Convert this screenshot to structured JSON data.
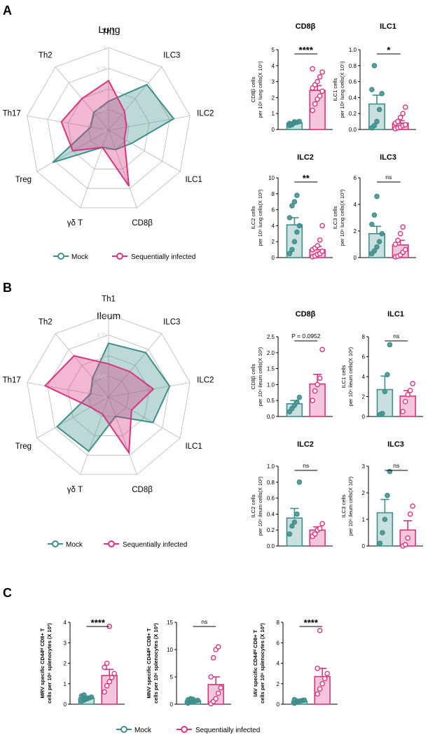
{
  "colors": {
    "mock": "#3e8e8b",
    "infected": "#d9347f",
    "mock_fill": "#3e8e8b",
    "infected_fill": "#d9347f",
    "sig_line": "#000000",
    "radar_grid": "#b8b8b8"
  },
  "radar_ticks": [
    "0",
    "0.25",
    "0.5",
    "0.75",
    "1"
  ],
  "legend": {
    "mock": "Mock",
    "infected": "Sequentially infected"
  },
  "panels": [
    {
      "label": "A",
      "title": "Lung"
    },
    {
      "label": "B",
      "title": "Ileum"
    },
    {
      "label": "C",
      "title": ""
    }
  ],
  "chart_data": [
    {
      "id": "radarA",
      "type": "radar",
      "panel": "A",
      "title": "Lung",
      "axes": [
        "Th1",
        "ILC3",
        "ILC2",
        "ILC1",
        "CD8β",
        "γδ T",
        "Treg",
        "Th17",
        "Th2"
      ],
      "series": [
        {
          "name": "Mock",
          "values": [
            0.35,
            0.72,
            0.8,
            0.32,
            0.25,
            0.22,
            0.78,
            0.22,
            0.28
          ]
        },
        {
          "name": "Sequentially infected",
          "values": [
            0.6,
            0.3,
            0.22,
            0.22,
            0.72,
            0.22,
            0.5,
            0.58,
            0.5
          ]
        }
      ],
      "rmax": 1
    },
    {
      "id": "barA_cd8",
      "type": "bar",
      "panel": "A",
      "title": "CD8β",
      "ylabel": [
        "CD8β cells",
        "per 10⁶ lung cells(X 10⁵)"
      ],
      "ylim": [
        0,
        5
      ],
      "yticks": [
        "0",
        "1",
        "2",
        "3",
        "4",
        "5"
      ],
      "categories": [
        "Mock",
        "Sequentially infected"
      ],
      "values": [
        0.4,
        2.45
      ],
      "errors": [
        0.06,
        0.3
      ],
      "points": [
        [
          0.25,
          0.35,
          0.42,
          0.45,
          0.5,
          0.38,
          0.3,
          0.48
        ],
        [
          1.2,
          1.6,
          1.9,
          2.1,
          2.4,
          2.6,
          2.8,
          3.0,
          3.3,
          3.6,
          3.8
        ]
      ],
      "significance": "****"
    },
    {
      "id": "barA_ilc1",
      "type": "bar",
      "panel": "A",
      "title": "ILC1",
      "ylabel": [
        "ILC1 cells",
        "per 10⁶ lung cells(X 10⁵)"
      ],
      "ylim": [
        0,
        1.0
      ],
      "yticks": [
        "0.0",
        "0.2",
        "0.4",
        "0.6",
        "0.8",
        "1.0"
      ],
      "categories": [
        "Mock",
        "Sequentially infected"
      ],
      "values": [
        0.32,
        0.08
      ],
      "errors": [
        0.11,
        0.03
      ],
      "points": [
        [
          0.02,
          0.05,
          0.1,
          0.25,
          0.45,
          0.5,
          0.8
        ],
        [
          0.01,
          0.02,
          0.03,
          0.05,
          0.06,
          0.08,
          0.1,
          0.15,
          0.2,
          0.28
        ]
      ],
      "significance": "*"
    },
    {
      "id": "barA_ilc2",
      "type": "bar",
      "panel": "A",
      "title": "ILC2",
      "ylabel": [
        "ILC2 cells",
        "per 10⁶ lung cells(X 10²)"
      ],
      "ylim": [
        0,
        10
      ],
      "yticks": [
        "0",
        "2",
        "4",
        "6",
        "8",
        "10"
      ],
      "categories": [
        "Mock",
        "Sequentially infected"
      ],
      "values": [
        4.1,
        1.0
      ],
      "errors": [
        0.9,
        0.4
      ],
      "points": [
        [
          0.5,
          1.0,
          2.0,
          3.2,
          4.0,
          5.0,
          6.5,
          7.0,
          7.8
        ],
        [
          0.1,
          0.2,
          0.4,
          0.5,
          0.8,
          1.0,
          1.2,
          1.5,
          2.2,
          4.0
        ]
      ],
      "significance": "**"
    },
    {
      "id": "barA_ilc3",
      "type": "bar",
      "panel": "A",
      "title": "ILC3",
      "ylabel": [
        "ILC3 cells",
        "per 10⁶ lung cells(X 10³)"
      ],
      "ylim": [
        0,
        6
      ],
      "yticks": [
        "0",
        "2",
        "4",
        "6"
      ],
      "categories": [
        "Mock",
        "Sequentially infected"
      ],
      "values": [
        1.8,
        0.95
      ],
      "errors": [
        0.55,
        0.35
      ],
      "points": [
        [
          0.3,
          0.5,
          0.8,
          1.2,
          1.8,
          2.5,
          3.2,
          4.6
        ],
        [
          0.05,
          0.1,
          0.2,
          0.4,
          0.6,
          1.0,
          1.3,
          1.8,
          2.3
        ]
      ],
      "significance": "ns"
    },
    {
      "id": "radarB",
      "type": "radar",
      "panel": "B",
      "title": "Ileum",
      "axes": [
        "Th1",
        "ILC3",
        "ILC2",
        "ILC1",
        "CD8β",
        "γδ T",
        "Treg",
        "Th17",
        "Th2"
      ],
      "series": [
        {
          "name": "Mock",
          "values": [
            0.65,
            0.7,
            0.75,
            0.62,
            0.25,
            0.7,
            0.72,
            0.22,
            0.3
          ]
        },
        {
          "name": "Sequentially infected",
          "values": [
            0.4,
            0.4,
            0.55,
            0.32,
            0.72,
            0.22,
            0.25,
            0.78,
            0.65
          ]
        }
      ],
      "rmax": 1
    },
    {
      "id": "barB_cd8",
      "type": "bar",
      "panel": "B",
      "title": "CD8β",
      "ylabel": [
        "CD8β cells",
        "per 10⁶ ileum cells(X 10²)"
      ],
      "ylim": [
        0,
        2.5
      ],
      "yticks": [
        "0.0",
        "0.5",
        "1.0",
        "1.5",
        "2.0",
        "2.5"
      ],
      "categories": [
        "Mock",
        "Sequentially infected"
      ],
      "values": [
        0.4,
        1.02
      ],
      "errors": [
        0.1,
        0.3
      ],
      "points": [
        [
          0.15,
          0.25,
          0.35,
          0.45,
          0.6
        ],
        [
          0.5,
          0.8,
          1.0,
          1.2,
          2.1
        ]
      ],
      "significance": "P = 0.0952"
    },
    {
      "id": "barB_ilc1",
      "type": "bar",
      "panel": "B",
      "title": "ILC1",
      "ylabel": [
        "ILC1 cells",
        "per 10⁶ ileum cells(X 10²)"
      ],
      "ylim": [
        0,
        8
      ],
      "yticks": [
        "0",
        "2",
        "4",
        "6",
        "8"
      ],
      "categories": [
        "Mock",
        "Sequentially infected"
      ],
      "values": [
        2.7,
        2.05
      ],
      "errors": [
        1.35,
        0.55
      ],
      "points": [
        [
          0.2,
          0.3,
          2.5,
          4.2,
          7.2
        ],
        [
          0.5,
          1.5,
          2.2,
          2.6,
          3.3
        ]
      ],
      "significance": "ns"
    },
    {
      "id": "barB_ilc2",
      "type": "bar",
      "panel": "B",
      "title": "ILC2",
      "ylabel": [
        "ILC2 cells",
        "per 10⁶ ileum cells(X 10²)"
      ],
      "ylim": [
        0,
        1.0
      ],
      "yticks": [
        "0.0",
        "0.2",
        "0.4",
        "0.6",
        "0.8",
        "1.0"
      ],
      "categories": [
        "Mock",
        "Sequentially infected"
      ],
      "values": [
        0.35,
        0.2
      ],
      "errors": [
        0.12,
        0.04
      ],
      "points": [
        [
          0.15,
          0.25,
          0.3,
          0.4,
          0.8
        ],
        [
          0.12,
          0.15,
          0.2,
          0.22,
          0.28
        ]
      ],
      "significance": "ns"
    },
    {
      "id": "barB_ilc3",
      "type": "bar",
      "panel": "B",
      "title": "ILC3",
      "ylabel": [
        "ILC3 cells",
        "per 10⁶ ileum cells(X 10²)"
      ],
      "ylim": [
        0,
        3
      ],
      "yticks": [
        "0",
        "1",
        "2",
        "3"
      ],
      "categories": [
        "Mock",
        "Sequentially infected"
      ],
      "values": [
        1.25,
        0.6
      ],
      "errors": [
        0.5,
        0.35
      ],
      "points": [
        [
          0.1,
          0.5,
          1.0,
          1.9,
          2.8
        ],
        [
          0.0,
          0.05,
          0.3,
          1.2,
          1.5
        ]
      ],
      "significance": "ns"
    },
    {
      "id": "barC_mrv",
      "type": "bar",
      "panel": "C",
      "title": "",
      "ylabel": [
        "MRV specific CD44ʰⁱ CD8+ T",
        "cells per 10⁶ splenocytes (X 10³)"
      ],
      "ylim": [
        0,
        4
      ],
      "yticks": [
        "0",
        "1",
        "2",
        "3",
        "4"
      ],
      "categories": [
        "Mock",
        "Sequentially infected"
      ],
      "values": [
        0.3,
        1.4
      ],
      "errors": [
        0.04,
        0.3
      ],
      "points": [
        [
          0.15,
          0.2,
          0.25,
          0.3,
          0.35,
          0.4,
          0.45,
          0.3
        ],
        [
          0.6,
          0.9,
          1.1,
          1.3,
          1.5,
          1.8,
          2.0,
          3.8
        ]
      ],
      "significance": "****"
    },
    {
      "id": "barC_mnv",
      "type": "bar",
      "panel": "C",
      "title": "",
      "ylabel": [
        "MNV specific CD44ʰⁱ CD8+ T",
        "cells per 10⁶ splenocytes (X 10³)"
      ],
      "ylim": [
        0,
        15
      ],
      "yticks": [
        "0",
        "5",
        "10",
        "15"
      ],
      "categories": [
        "Mock",
        "Sequentially infected"
      ],
      "values": [
        0.6,
        3.6
      ],
      "errors": [
        0.15,
        1.4
      ],
      "points": [
        [
          0.2,
          0.4,
          0.5,
          0.6,
          0.7,
          0.8,
          1.0,
          0.9
        ],
        [
          0.1,
          0.5,
          1.0,
          2.0,
          3.0,
          5.0,
          8.5,
          10.0,
          10.5
        ]
      ],
      "significance": "ns"
    },
    {
      "id": "barC_iav",
      "type": "bar",
      "panel": "C",
      "title": "",
      "ylabel": [
        "IAV specific CD44ʰⁱ CD8+ T",
        "cells per 10⁶ splenocytes (X 10³)"
      ],
      "ylim": [
        0,
        8
      ],
      "yticks": [
        "0",
        "2",
        "4",
        "6",
        "8"
      ],
      "categories": [
        "Mock",
        "Sequentially infected"
      ],
      "values": [
        0.3,
        2.7
      ],
      "errors": [
        0.06,
        0.8
      ],
      "points": [
        [
          0.1,
          0.2,
          0.3,
          0.35,
          0.4,
          0.45,
          0.3
        ],
        [
          1.0,
          1.5,
          2.0,
          2.5,
          3.0,
          3.5,
          7.2
        ]
      ],
      "significance": "****"
    }
  ]
}
